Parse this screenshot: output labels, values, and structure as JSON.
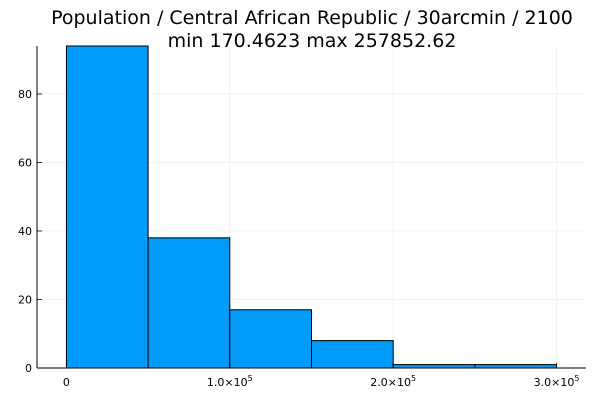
{
  "chart_data": {
    "type": "bar",
    "title_lines": [
      "Population / Central African Republic / 30arcmin / 2100",
      "min 170.4623  max 257852.62"
    ],
    "xlabel": "",
    "ylabel": "",
    "bins": [
      {
        "x0": 0,
        "x1": 50000,
        "count": 94
      },
      {
        "x0": 50000,
        "x1": 100000,
        "count": 38
      },
      {
        "x0": 100000,
        "x1": 150000,
        "count": 17
      },
      {
        "x0": 150000,
        "x1": 200000,
        "count": 8
      },
      {
        "x0": 200000,
        "x1": 250000,
        "count": 1
      },
      {
        "x0": 250000,
        "x1": 300000,
        "count": 1
      }
    ],
    "xlim": [
      -18000,
      318000
    ],
    "ylim": [
      0,
      94
    ],
    "x_ticks": [
      {
        "value": 0,
        "mantissa": "0",
        "exponent": ""
      },
      {
        "value": 100000,
        "mantissa": "1.0×10",
        "exponent": "5"
      },
      {
        "value": 200000,
        "mantissa": "2.0×10",
        "exponent": "5"
      },
      {
        "value": 300000,
        "mantissa": "3.0×10",
        "exponent": "5"
      }
    ],
    "y_ticks": [
      {
        "value": 0,
        "label": "0"
      },
      {
        "value": 20,
        "label": "20"
      },
      {
        "value": 40,
        "label": "40"
      },
      {
        "value": 60,
        "label": "60"
      },
      {
        "value": 80,
        "label": "80"
      }
    ],
    "grid": true,
    "legend": "none",
    "bar_color": "#009af9",
    "bar_edge_color": "#000000"
  }
}
